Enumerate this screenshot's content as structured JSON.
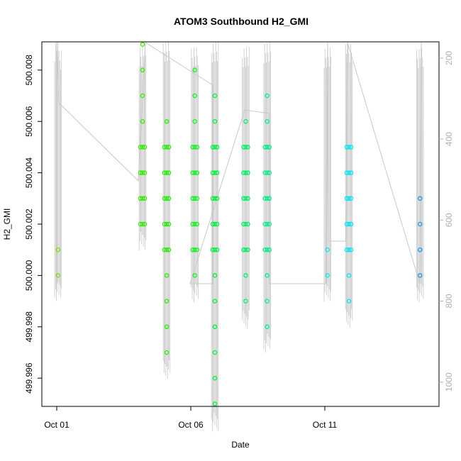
{
  "chart_data": {
    "type": "scatter",
    "title": "ATOM3 Southbound H2_GMI",
    "xlabel": "Date",
    "ylabel": "H2_GMI",
    "x_ticks": [
      "Oct 01",
      "Oct 06",
      "Oct 11"
    ],
    "y_ticks": [
      "499.996",
      "499.998",
      "500.000",
      "500.002",
      "500.004",
      "500.006",
      "500.008"
    ],
    "ylim": [
      499.9949,
      500.0091
    ],
    "y2_ticks": [
      "200",
      "400",
      "600",
      "800",
      "1000"
    ],
    "y2lim": [
      1060,
      160
    ],
    "y2_color": "#b0b0b0",
    "grid": false,
    "series": [
      {
        "day": 1.05,
        "color": "#7fdc00",
        "values": [
          500.0,
          500.001
        ]
      },
      {
        "day": 4.2,
        "color": "#33ea00",
        "values": [
          500.002,
          500.003,
          500.004,
          500.005,
          500.006,
          500.007,
          500.008,
          500.009
        ]
      },
      {
        "day": 5.1,
        "color": "#22ee00",
        "values": [
          499.997,
          499.998,
          499.999,
          500.0,
          500.001,
          500.002,
          500.003,
          500.004,
          500.005,
          500.006
        ]
      },
      {
        "day": 6.15,
        "color": "#11f022",
        "values": [
          500.0,
          500.001,
          500.002,
          500.003,
          500.004,
          500.005,
          500.006,
          500.007,
          500.008
        ]
      },
      {
        "day": 6.9,
        "color": "#00f03a",
        "values": [
          499.995,
          499.996,
          499.997,
          499.998,
          499.999,
          500.0,
          500.001,
          500.002,
          500.003,
          500.004,
          500.005,
          500.006,
          500.007
        ]
      },
      {
        "day": 8.05,
        "color": "#00ee66",
        "values": [
          499.999,
          500.0,
          500.001,
          500.002,
          500.003,
          500.004,
          500.005,
          500.006
        ]
      },
      {
        "day": 8.85,
        "color": "#00ee88",
        "values": [
          499.998,
          499.999,
          500.0,
          500.001,
          500.002,
          500.003,
          500.004,
          500.005,
          500.006,
          500.007
        ]
      },
      {
        "day": 11.1,
        "color": "#00eeee",
        "values": [
          500.0,
          500.001
        ]
      },
      {
        "day": 11.9,
        "color": "#00e6f5",
        "values": [
          499.999,
          500.0,
          500.001,
          500.002,
          500.003,
          500.004,
          500.005
        ]
      },
      {
        "day": 14.55,
        "color": "#1a9ae6",
        "values": [
          500.0,
          500.001,
          500.002,
          500.003
        ]
      }
    ]
  }
}
